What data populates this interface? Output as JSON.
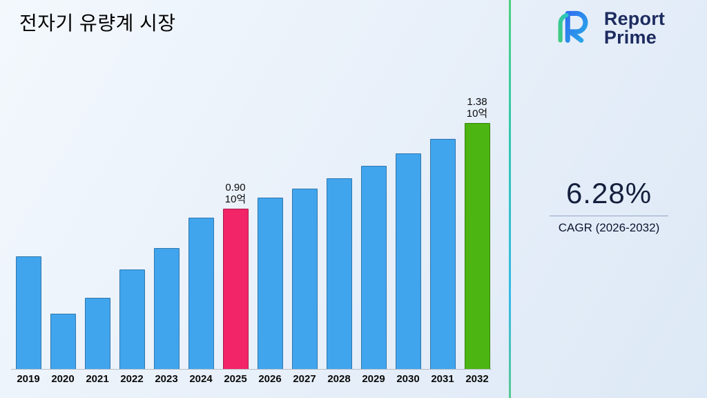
{
  "title": "전자기 유량계 시장",
  "brand": {
    "name_line1": "Report",
    "name_line2": "Prime"
  },
  "stats": {
    "cagr_value": "6.28%",
    "cagr_label": "CAGR (2026-2032)"
  },
  "chart_data": {
    "type": "bar",
    "title": "전자기 유량계 시장",
    "unit": "10억",
    "categories": [
      "2019",
      "2020",
      "2021",
      "2022",
      "2023",
      "2024",
      "2025",
      "2026",
      "2027",
      "2028",
      "2029",
      "2030",
      "2031",
      "2032"
    ],
    "values": [
      0.63,
      0.31,
      0.4,
      0.56,
      0.68,
      0.85,
      0.9,
      0.96,
      1.01,
      1.07,
      1.14,
      1.21,
      1.29,
      1.38
    ],
    "ylim": [
      0,
      1.45
    ],
    "grid": false,
    "legend": false,
    "bar_color": "#41a5ee",
    "highlight": [
      {
        "category": "2025",
        "color": "#f22568",
        "label_value": "0.90",
        "label_unit": "10억"
      },
      {
        "category": "2032",
        "color": "#4cb512",
        "label_value": "1.38",
        "label_unit": "10억"
      }
    ]
  }
}
